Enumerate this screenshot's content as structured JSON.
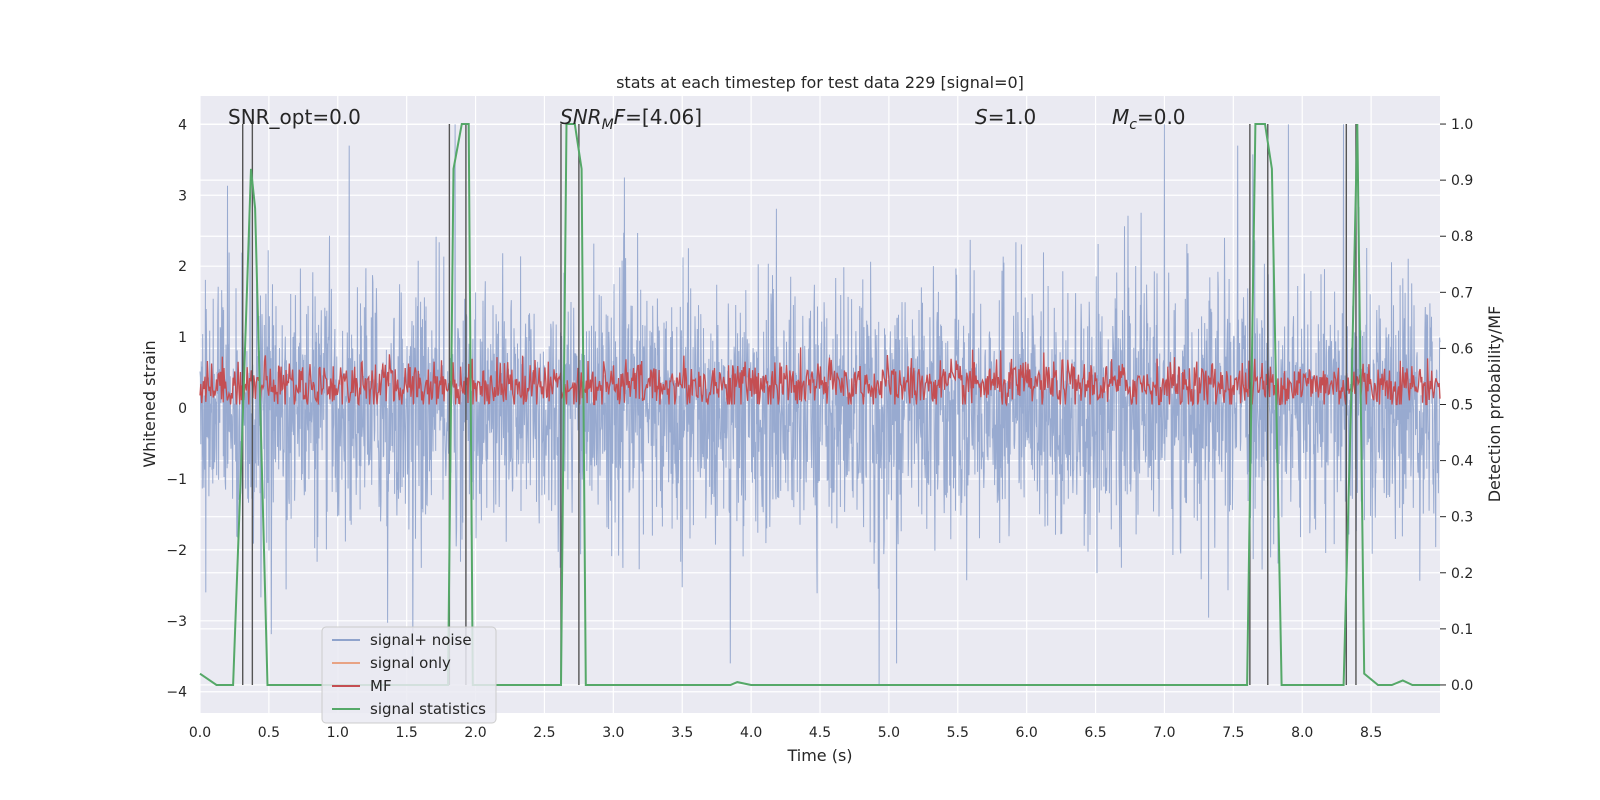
{
  "chart_data": {
    "type": "line",
    "title": "stats at each timestep for test data 229 [signal=0]",
    "xlabel": "Time (s)",
    "ylabel_left": "Whitened strain",
    "ylabel_right": "Detection probability/MF",
    "xlim": [
      0.0,
      9.0
    ],
    "ylim_left": [
      -4.3,
      4.4
    ],
    "ylim_right": [
      -0.05,
      1.05
    ],
    "x_ticks": [
      0.0,
      0.5,
      1.0,
      1.5,
      2.0,
      2.5,
      3.0,
      3.5,
      4.0,
      4.5,
      5.0,
      5.5,
      6.0,
      6.5,
      7.0,
      7.5,
      8.0,
      8.5
    ],
    "x_tick_labels": [
      "0.0",
      "0.5",
      "1.0",
      "1.5",
      "2.0",
      "2.5",
      "3.0",
      "3.5",
      "4.0",
      "4.5",
      "5.0",
      "5.5",
      "6.0",
      "6.5",
      "7.0",
      "7.5",
      "8.0",
      "8.5"
    ],
    "left_ticks": [
      -4,
      -3,
      -2,
      -1,
      0,
      1,
      2,
      3,
      4
    ],
    "left_tick_labels": [
      "−4",
      "−3",
      "−2",
      "−1",
      "0",
      "1",
      "2",
      "3",
      "4"
    ],
    "right_ticks": [
      0.0,
      0.1,
      0.2,
      0.3,
      0.4,
      0.5,
      0.6,
      0.7,
      0.8,
      0.9,
      1.0
    ],
    "right_tick_labels": [
      "0.0",
      "0.1",
      "0.2",
      "0.3",
      "0.4",
      "0.5",
      "0.6",
      "0.7",
      "0.8",
      "0.9",
      "1.0"
    ],
    "grid": true,
    "legend_position": "lower-left",
    "annotations": [
      "SNR_opt=0.0",
      "SNR_MF=[4.06]",
      "S=1.0",
      "M_c=0.0"
    ],
    "series": [
      {
        "name": "signal+ noise",
        "color": "#8fa3cc",
        "axis": "left",
        "description_values": {
          "typical_range": [
            -1.8,
            1.8
          ],
          "max_peak": 4.0,
          "min_peak": -3.9
        },
        "notable_peaks": [
          [
            1.85,
            4.0
          ],
          [
            7.0,
            4.0
          ],
          [
            7.9,
            4.0
          ],
          [
            8.3,
            4.0
          ],
          [
            3.85,
            -3.6
          ],
          [
            4.93,
            -3.9
          ]
        ]
      },
      {
        "name": "signal only",
        "color": "#e8a384",
        "axis": "left",
        "values": []
      },
      {
        "name": "MF",
        "color": "#c44e52",
        "axis": "right",
        "typical_range": [
          0.5,
          0.62
        ]
      },
      {
        "name": "signal statistics",
        "color": "#55a868",
        "axis": "right",
        "x": [
          0.0,
          0.12,
          0.24,
          0.3,
          0.37,
          0.4,
          0.49,
          0.6,
          1.8,
          1.84,
          1.9,
          1.95,
          1.98,
          2.05,
          2.62,
          2.66,
          2.72,
          2.77,
          2.8,
          2.9,
          3.7,
          3.85,
          3.9,
          4.0,
          7.6,
          7.66,
          7.73,
          7.78,
          7.85,
          8.3,
          8.36,
          8.4,
          8.45,
          8.55,
          8.65,
          8.73,
          8.8,
          9.0
        ],
        "y": [
          0.02,
          0.0,
          0.0,
          0.4,
          0.92,
          0.85,
          0.0,
          0.0,
          0.0,
          0.92,
          1.0,
          1.0,
          0.0,
          0.0,
          0.0,
          1.0,
          1.0,
          0.92,
          0.0,
          0.0,
          0.0,
          0.0,
          0.005,
          0.0,
          0.0,
          1.0,
          1.0,
          0.92,
          0.0,
          0.0,
          0.55,
          1.0,
          0.02,
          0.0,
          0.0,
          0.008,
          0.0,
          0.0
        ]
      }
    ],
    "vertical_lines_x": [
      0.31,
      0.38,
      1.81,
      1.93,
      2.62,
      2.75,
      7.62,
      7.75,
      8.32,
      8.39
    ]
  }
}
